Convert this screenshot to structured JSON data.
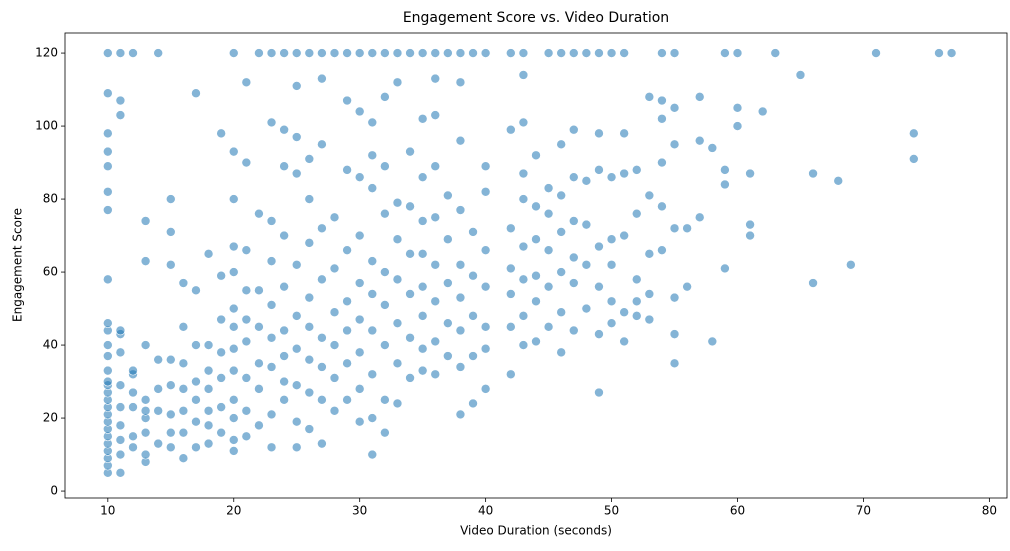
{
  "chart_data": {
    "type": "scatter",
    "title": "Engagement Score vs. Video Duration",
    "x_label": "Video Duration (seconds)",
    "y_label": "Engagement Score",
    "xlim": [
      6.6,
      81.4
    ],
    "ylim": [
      -1.9,
      125.5
    ],
    "xticks": [
      10,
      20,
      30,
      40,
      50,
      60,
      70,
      80
    ],
    "yticks": [
      0,
      20,
      40,
      60,
      80,
      100,
      120
    ],
    "grid": false,
    "series": [
      {
        "color": "#1f77b4",
        "x": [
          10,
          10,
          10,
          10,
          10,
          10,
          10,
          10,
          10,
          10,
          10,
          10,
          10,
          10,
          10,
          10,
          10,
          10,
          10,
          10,
          10,
          10,
          10,
          10,
          10,
          10,
          10,
          11,
          11,
          11,
          11,
          11,
          11,
          11,
          11,
          11,
          11,
          11,
          11,
          12,
          12,
          12,
          12,
          12,
          12,
          12,
          13,
          13,
          13,
          13,
          13,
          13,
          13,
          13,
          13,
          14,
          14,
          14,
          14,
          14,
          15,
          15,
          15,
          15,
          15,
          15,
          15,
          15,
          16,
          16,
          16,
          16,
          16,
          16,
          16,
          17,
          17,
          17,
          17,
          17,
          17,
          17,
          18,
          18,
          18,
          18,
          18,
          18,
          18,
          19,
          19,
          19,
          19,
          19,
          19,
          19,
          20,
          20,
          20,
          20,
          20,
          20,
          20,
          20,
          20,
          20,
          20,
          20,
          20,
          21,
          21,
          21,
          21,
          21,
          21,
          21,
          21,
          21,
          22,
          22,
          22,
          22,
          22,
          22,
          22,
          23,
          23,
          23,
          23,
          23,
          23,
          23,
          23,
          23,
          24,
          24,
          24,
          24,
          24,
          24,
          24,
          24,
          24,
          25,
          25,
          25,
          25,
          25,
          25,
          25,
          25,
          25,
          25,
          26,
          26,
          26,
          26,
          26,
          26,
          26,
          26,
          26,
          27,
          27,
          27,
          27,
          27,
          27,
          27,
          27,
          27,
          28,
          28,
          28,
          28,
          28,
          28,
          28,
          29,
          29,
          29,
          29,
          29,
          29,
          29,
          29,
          30,
          30,
          30,
          30,
          30,
          30,
          30,
          30,
          30,
          31,
          31,
          31,
          31,
          31,
          31,
          31,
          31,
          31,
          31,
          32,
          32,
          32,
          32,
          32,
          32,
          32,
          32,
          32,
          33,
          33,
          33,
          33,
          33,
          33,
          33,
          33,
          34,
          34,
          34,
          34,
          34,
          34,
          34,
          35,
          35,
          35,
          35,
          35,
          35,
          35,
          35,
          35,
          36,
          36,
          36,
          36,
          36,
          36,
          36,
          36,
          36,
          37,
          37,
          37,
          37,
          37,
          37,
          38,
          38,
          38,
          38,
          38,
          38,
          38,
          38,
          38,
          39,
          39,
          39,
          39,
          39,
          39,
          40,
          40,
          40,
          40,
          40,
          40,
          40,
          40,
          42,
          42,
          42,
          42,
          42,
          42,
          42,
          43,
          43,
          43,
          43,
          43,
          43,
          43,
          43,
          43,
          44,
          44,
          44,
          44,
          44,
          44,
          45,
          45,
          45,
          45,
          45,
          45,
          46,
          46,
          46,
          46,
          46,
          46,
          46,
          47,
          47,
          47,
          47,
          47,
          47,
          47,
          48,
          48,
          48,
          48,
          48,
          49,
          49,
          49,
          49,
          49,
          49,
          49,
          50,
          50,
          50,
          50,
          50,
          50,
          51,
          51,
          51,
          51,
          51,
          51,
          52,
          52,
          52,
          52,
          52,
          53,
          53,
          53,
          53,
          53,
          54,
          54,
          54,
          54,
          54,
          54,
          55,
          55,
          55,
          55,
          55,
          55,
          55,
          56,
          56,
          57,
          57,
          57,
          58,
          58,
          59,
          59,
          59,
          59,
          60,
          60,
          60,
          61,
          61,
          61,
          62,
          63,
          65,
          66,
          66,
          68,
          69,
          71,
          74,
          74,
          76,
          77
        ],
        "values": [
          5,
          7,
          9,
          11,
          13,
          15,
          17,
          19,
          21,
          23,
          25,
          27,
          29,
          30,
          33,
          37,
          40,
          44,
          46,
          58,
          77,
          82,
          89,
          93,
          98,
          109,
          120,
          5,
          10,
          14,
          18,
          23,
          29,
          38,
          43,
          44,
          103,
          107,
          120,
          12,
          15,
          23,
          27,
          32,
          33,
          120,
          8,
          10,
          16,
          20,
          22,
          25,
          40,
          63,
          74,
          13,
          22,
          28,
          36,
          120,
          12,
          16,
          21,
          29,
          36,
          62,
          71,
          80,
          9,
          16,
          22,
          28,
          35,
          45,
          57,
          12,
          19,
          25,
          30,
          40,
          55,
          109,
          13,
          18,
          22,
          28,
          33,
          40,
          65,
          16,
          23,
          31,
          38,
          47,
          59,
          98,
          11,
          14,
          20,
          25,
          33,
          39,
          45,
          50,
          60,
          67,
          80,
          93,
          120,
          15,
          22,
          31,
          41,
          47,
          55,
          66,
          90,
          112,
          18,
          28,
          35,
          45,
          55,
          76,
          120,
          12,
          21,
          34,
          42,
          51,
          63,
          74,
          101,
          120,
          25,
          30,
          37,
          44,
          56,
          70,
          89,
          99,
          120,
          12,
          19,
          29,
          39,
          48,
          62,
          87,
          97,
          111,
          120,
          17,
          27,
          36,
          45,
          53,
          68,
          80,
          91,
          120,
          13,
          25,
          34,
          42,
          58,
          72,
          95,
          113,
          120,
          22,
          31,
          40,
          49,
          61,
          75,
          120,
          25,
          35,
          44,
          52,
          66,
          88,
          107,
          120,
          19,
          28,
          38,
          47,
          57,
          70,
          86,
          104,
          120,
          10,
          20,
          32,
          44,
          54,
          63,
          83,
          92,
          101,
          120,
          16,
          25,
          40,
          51,
          60,
          76,
          89,
          108,
          120,
          24,
          35,
          46,
          58,
          69,
          79,
          112,
          120,
          31,
          42,
          54,
          65,
          78,
          93,
          120,
          33,
          39,
          48,
          56,
          65,
          74,
          86,
          102,
          120,
          32,
          41,
          52,
          62,
          75,
          89,
          103,
          113,
          120,
          37,
          46,
          57,
          69,
          81,
          120,
          21,
          34,
          44,
          53,
          62,
          77,
          96,
          112,
          120,
          24,
          37,
          48,
          59,
          71,
          120,
          28,
          39,
          45,
          56,
          66,
          82,
          89,
          120,
          32,
          45,
          54,
          61,
          72,
          99,
          120,
          40,
          48,
          58,
          67,
          80,
          87,
          101,
          114,
          120,
          41,
          52,
          59,
          69,
          78,
          92,
          45,
          56,
          66,
          76,
          83,
          120,
          38,
          49,
          60,
          71,
          81,
          95,
          120,
          44,
          57,
          64,
          74,
          86,
          99,
          120,
          50,
          62,
          73,
          85,
          120,
          27,
          43,
          56,
          67,
          88,
          98,
          120,
          46,
          52,
          62,
          69,
          86,
          120,
          41,
          49,
          70,
          87,
          98,
          120,
          48,
          52,
          58,
          76,
          88,
          47,
          54,
          65,
          81,
          108,
          66,
          78,
          90,
          102,
          107,
          120,
          35,
          43,
          53,
          72,
          95,
          105,
          120,
          56,
          72,
          75,
          96,
          108,
          41,
          94,
          61,
          84,
          88,
          120,
          100,
          105,
          120,
          70,
          73,
          87,
          104,
          120,
          114,
          57,
          87,
          85,
          62,
          120,
          91,
          98,
          120,
          120
        ]
      }
    ]
  }
}
